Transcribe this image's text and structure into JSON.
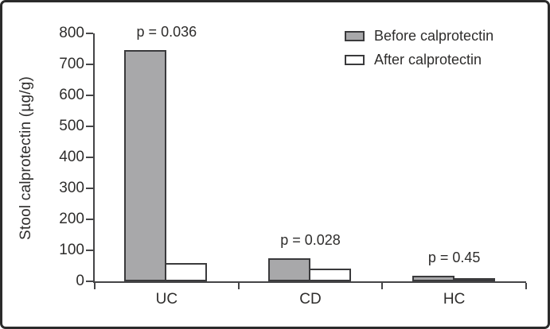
{
  "figure": {
    "background": "#ffffff",
    "frame_border_color": "#2b2b2b",
    "text_color": "#2e2d2c"
  },
  "chart_data": {
    "type": "bar",
    "title": "",
    "xlabel": "",
    "ylabel": "Stool calprotectin (µg/g)",
    "categories": [
      "UC",
      "CD",
      "HC"
    ],
    "series": [
      {
        "name": "Before calprotectin",
        "color": "#a8a8aa",
        "values": [
          745,
          75,
          18
        ]
      },
      {
        "name": "After calprotectin",
        "color": "#ffffff",
        "values": [
          60,
          40,
          5
        ]
      }
    ],
    "annotations": [
      {
        "category": "UC",
        "label": "p = 0.036"
      },
      {
        "category": "CD",
        "label": "p = 0.028"
      },
      {
        "category": "HC",
        "label": "p = 0.45"
      }
    ],
    "ylim": [
      0,
      800
    ],
    "yticks": [
      0,
      100,
      200,
      300,
      400,
      500,
      600,
      700,
      800
    ],
    "grid": false,
    "legend_position": "top-right",
    "bar_border_color": "#3a3a3c",
    "axis_color": "#454547"
  }
}
